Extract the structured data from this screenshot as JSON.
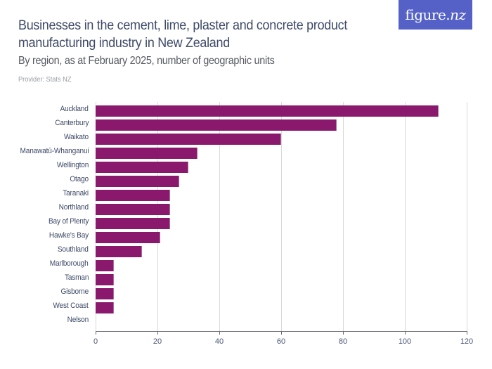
{
  "header": {
    "title_line1": "Businesses in the cement, lime, plaster and concrete product",
    "title_line2": "manufacturing industry in New Zealand",
    "subtitle": "By region, as at February 2025, number of geographic units",
    "provider": "Provider: Stats NZ"
  },
  "logo": {
    "text_main": "figure.",
    "text_nz": "nz",
    "background": "#5561c6"
  },
  "colors": {
    "bar": "#8a196d",
    "title": "#3e4a68",
    "gridline": "#d9d9d9"
  },
  "axis": {
    "ticks": [
      "0",
      "20",
      "40",
      "60",
      "80",
      "100",
      "120"
    ]
  },
  "rows": [
    {
      "label": "Auckland",
      "value": 111
    },
    {
      "label": "Canterbury",
      "value": 78
    },
    {
      "label": "Waikato",
      "value": 60
    },
    {
      "label": "Manawatū-Whanganui",
      "value": 33
    },
    {
      "label": "Wellington",
      "value": 30
    },
    {
      "label": "Otago",
      "value": 27
    },
    {
      "label": "Taranaki",
      "value": 24
    },
    {
      "label": "Northland",
      "value": 24
    },
    {
      "label": "Bay of Plenty",
      "value": 24
    },
    {
      "label": "Hawke's Bay",
      "value": 21
    },
    {
      "label": "Southland",
      "value": 15
    },
    {
      "label": "Marlborough",
      "value": 6
    },
    {
      "label": "Tasman",
      "value": 6
    },
    {
      "label": "Gisborne",
      "value": 6
    },
    {
      "label": "West Coast",
      "value": 6
    },
    {
      "label": "Nelson",
      "value": 0
    }
  ],
  "chart_data": {
    "type": "bar",
    "orientation": "horizontal",
    "title": "Businesses in the cement, lime, plaster and concrete product manufacturing industry in New Zealand",
    "subtitle": "By region, as at February 2025, number of geographic units",
    "xlabel": "",
    "ylabel": "",
    "categories": [
      "Auckland",
      "Canterbury",
      "Waikato",
      "Manawatū-Whanganui",
      "Wellington",
      "Otago",
      "Taranaki",
      "Northland",
      "Bay of Plenty",
      "Hawke's Bay",
      "Southland",
      "Marlborough",
      "Tasman",
      "Gisborne",
      "West Coast",
      "Nelson"
    ],
    "values": [
      111,
      78,
      60,
      33,
      30,
      27,
      24,
      24,
      24,
      21,
      15,
      6,
      6,
      6,
      6,
      0
    ],
    "xlim": [
      0,
      120
    ],
    "xticks": [
      0,
      20,
      40,
      60,
      80,
      100,
      120
    ],
    "grid": true,
    "legend": null,
    "annotations": [
      "Provider: Stats NZ"
    ],
    "color": "#8a196d"
  }
}
